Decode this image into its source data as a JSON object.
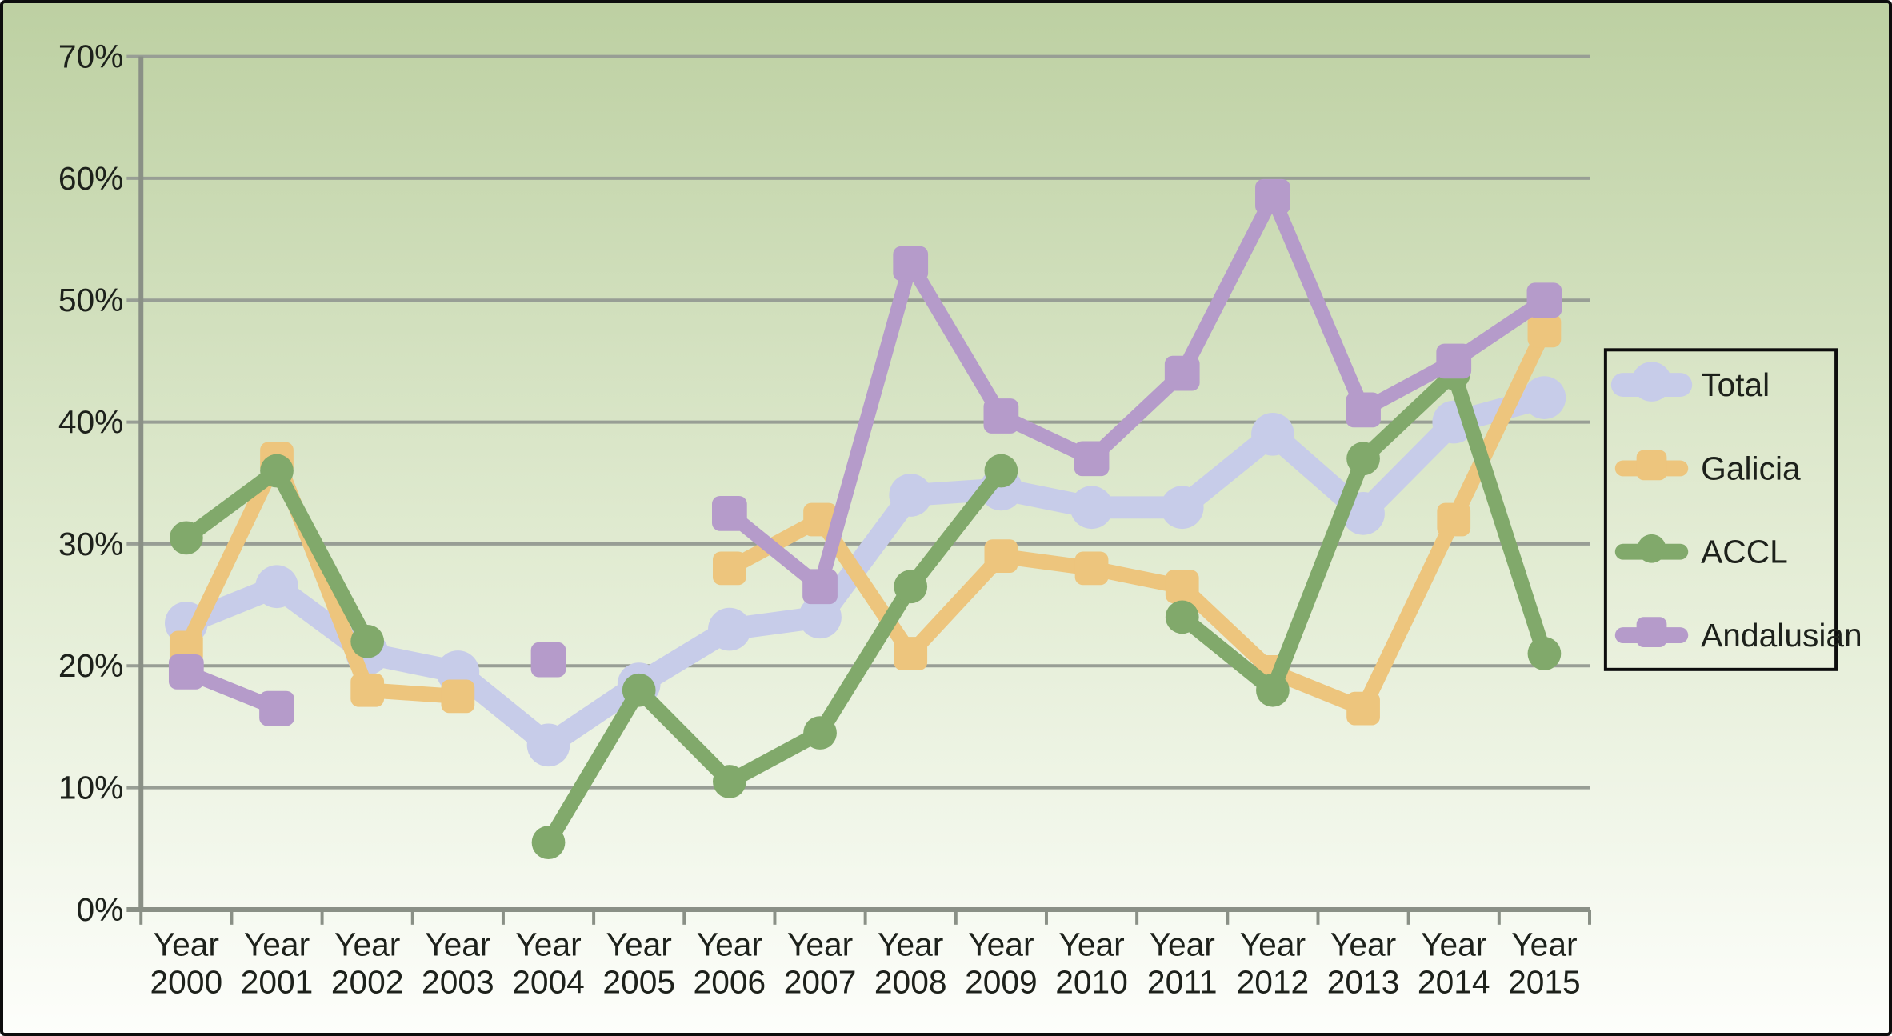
{
  "chart_data": {
    "type": "line",
    "title": "",
    "xlabel": "",
    "ylabel": "",
    "categories": [
      "Year 2000",
      "Year 2001",
      "Year 2002",
      "Year 2003",
      "Year 2004",
      "Year 2005",
      "Year 2006",
      "Year 2007",
      "Year 2008",
      "Year 2009",
      "Year 2010",
      "Year 2011",
      "Year 2012",
      "Year 2013",
      "Year 2014",
      "Year 2015"
    ],
    "ylim": [
      0,
      70
    ],
    "ytick_step": 10,
    "ytick_suffix": "%",
    "ytick_labels": [
      "0%",
      "10%",
      "20%",
      "30%",
      "40%",
      "50%",
      "60%",
      "70%"
    ],
    "grid": true,
    "legend_position": "right",
    "series": [
      {
        "name": "Total",
        "color": "#c7cce9",
        "marker": "circle",
        "values": [
          23.5,
          26.5,
          21,
          19.5,
          13.5,
          18.5,
          23,
          24,
          34,
          34.5,
          33,
          33,
          39,
          32.5,
          40,
          42
        ]
      },
      {
        "name": "Galicia",
        "color": "#edc57d",
        "marker": "square",
        "values": [
          21.5,
          37,
          18,
          17.5,
          null,
          null,
          28,
          32,
          21,
          29,
          28,
          26.5,
          19.5,
          16.5,
          32,
          47.5
        ]
      },
      {
        "name": "ACCL",
        "color": "#81a96b",
        "marker": "circle",
        "values": [
          30.5,
          36,
          22,
          null,
          5.5,
          18,
          10.5,
          14.5,
          26.5,
          36,
          null,
          24,
          18,
          37,
          44,
          21
        ]
      },
      {
        "name": "Andalusian",
        "color": "#b59bca",
        "marker": "square",
        "values": [
          19.5,
          16.5,
          null,
          null,
          20.5,
          null,
          32.5,
          26.5,
          53,
          40.5,
          37,
          44,
          58.5,
          41,
          45,
          50
        ]
      }
    ]
  },
  "colors": {
    "background_top": "#bdd0a2",
    "background_mid": "#e2ecd3",
    "background_bottom": "#fdfefb",
    "grid": "#989e95",
    "axis": "#8a9086",
    "text": "#1d211b",
    "border": "#0d0d0d",
    "legend_fill_top": "#d8e4c5",
    "legend_fill_bottom": "#eaf1de"
  }
}
